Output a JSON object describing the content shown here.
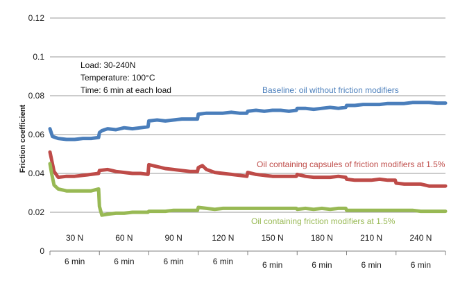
{
  "chart_data": {
    "type": "line",
    "ylabel": "Friction coefficient",
    "xlabel": "",
    "ylim": [
      0,
      0.12
    ],
    "yticks": [
      "0",
      "0.02",
      "0.04",
      "0.06",
      "0.08",
      "0.1",
      "0.12"
    ],
    "grid": true,
    "notes": [
      "Load: 30-240N",
      "Temperature: 100°C",
      "Time: 6 min at each load"
    ],
    "x_unit": "min",
    "xlim": [
      0,
      48
    ],
    "segments": [
      {
        "load": "30 N",
        "time": "6 min"
      },
      {
        "load": "60 N",
        "time": "6 min"
      },
      {
        "load": "90 N",
        "time": "6 min"
      },
      {
        "load": "120 N",
        "time": "6 min"
      },
      {
        "load": "150 N",
        "time": "6 min"
      },
      {
        "load": "180 N",
        "time": "6 min"
      },
      {
        "load": "210 N",
        "time": "6 min"
      },
      {
        "load": "240 N",
        "time": "6 min"
      }
    ],
    "series": [
      {
        "name": "Baseline: oil without friction modifiers",
        "color": "#4a7ebb",
        "x": [
          0,
          0.3,
          1,
          2,
          3,
          4,
          5,
          5.9,
          6,
          6.3,
          7,
          8,
          9,
          10,
          11,
          11.9,
          12,
          13,
          14,
          15,
          16,
          17,
          17.9,
          18,
          19,
          20,
          21,
          22,
          23,
          23.9,
          24,
          25,
          26,
          27,
          28,
          29,
          29.9,
          30,
          31,
          32,
          33,
          34,
          35,
          35.9,
          36,
          37,
          38,
          39,
          40,
          41,
          41.9,
          42,
          43,
          44,
          45,
          46,
          47,
          48
        ],
        "values": [
          0.063,
          0.059,
          0.058,
          0.0575,
          0.0575,
          0.058,
          0.058,
          0.0585,
          0.061,
          0.062,
          0.063,
          0.0625,
          0.0635,
          0.063,
          0.0635,
          0.064,
          0.067,
          0.0675,
          0.067,
          0.0675,
          0.068,
          0.068,
          0.068,
          0.0705,
          0.071,
          0.071,
          0.071,
          0.0715,
          0.071,
          0.071,
          0.072,
          0.0725,
          0.072,
          0.0725,
          0.0725,
          0.072,
          0.0725,
          0.0735,
          0.0735,
          0.073,
          0.0735,
          0.074,
          0.0735,
          0.074,
          0.075,
          0.075,
          0.0755,
          0.0755,
          0.0755,
          0.076,
          0.076,
          0.076,
          0.076,
          0.0765,
          0.0765,
          0.0765,
          0.0762,
          0.0762
        ]
      },
      {
        "name": "Oil containing capsules of friction modifiers at 1.5%",
        "color": "#be4b48",
        "x": [
          0,
          0.2,
          0.5,
          1,
          2,
          3,
          4,
          5,
          5.9,
          6,
          7,
          8,
          9,
          10,
          11,
          11.9,
          12,
          13,
          14,
          15,
          16,
          17,
          17.9,
          18,
          18.5,
          19,
          20,
          21,
          22,
          23,
          23.9,
          24,
          25,
          26,
          27,
          28,
          29,
          29.9,
          30,
          31,
          32,
          33,
          34,
          35,
          35.9,
          36,
          37,
          38,
          39,
          40,
          41,
          41.9,
          42,
          43,
          44,
          45,
          46,
          47,
          48
        ],
        "values": [
          0.051,
          0.047,
          0.041,
          0.038,
          0.0385,
          0.0385,
          0.039,
          0.0395,
          0.04,
          0.0415,
          0.042,
          0.041,
          0.0405,
          0.04,
          0.04,
          0.0395,
          0.0445,
          0.0435,
          0.0425,
          0.042,
          0.0415,
          0.041,
          0.041,
          0.043,
          0.044,
          0.042,
          0.0405,
          0.04,
          0.0395,
          0.039,
          0.0385,
          0.0405,
          0.0395,
          0.039,
          0.0385,
          0.0385,
          0.0385,
          0.0385,
          0.0395,
          0.0385,
          0.038,
          0.038,
          0.038,
          0.0385,
          0.038,
          0.037,
          0.0365,
          0.0365,
          0.0365,
          0.037,
          0.0365,
          0.0365,
          0.035,
          0.0345,
          0.0345,
          0.0345,
          0.0335,
          0.0335,
          0.0335
        ]
      },
      {
        "name": "Oil containing friction modifiers at 1.5%",
        "color": "#98b954",
        "x": [
          0,
          0.2,
          0.5,
          1,
          2,
          3,
          4,
          5,
          5.9,
          6,
          6.3,
          7,
          8,
          9,
          10,
          11,
          11.9,
          12,
          13,
          14,
          15,
          16,
          17,
          17.9,
          18,
          19,
          20,
          21,
          22,
          23,
          23.9,
          24,
          25,
          26,
          27,
          28,
          29,
          29.9,
          30,
          31,
          32,
          33,
          34,
          35,
          35.9,
          36,
          37,
          38,
          39,
          40,
          41,
          41.9,
          42,
          43,
          44,
          45,
          46,
          47,
          48
        ],
        "values": [
          0.045,
          0.04,
          0.034,
          0.032,
          0.031,
          0.031,
          0.031,
          0.031,
          0.032,
          0.023,
          0.0185,
          0.019,
          0.0195,
          0.0195,
          0.02,
          0.02,
          0.02,
          0.0205,
          0.0205,
          0.0205,
          0.021,
          0.021,
          0.021,
          0.021,
          0.0225,
          0.022,
          0.0215,
          0.022,
          0.022,
          0.022,
          0.022,
          0.022,
          0.022,
          0.022,
          0.022,
          0.022,
          0.022,
          0.022,
          0.0215,
          0.022,
          0.0215,
          0.022,
          0.0215,
          0.022,
          0.022,
          0.021,
          0.021,
          0.021,
          0.021,
          0.021,
          0.021,
          0.021,
          0.021,
          0.021,
          0.021,
          0.0205,
          0.0205,
          0.0205,
          0.0205
        ]
      }
    ]
  }
}
